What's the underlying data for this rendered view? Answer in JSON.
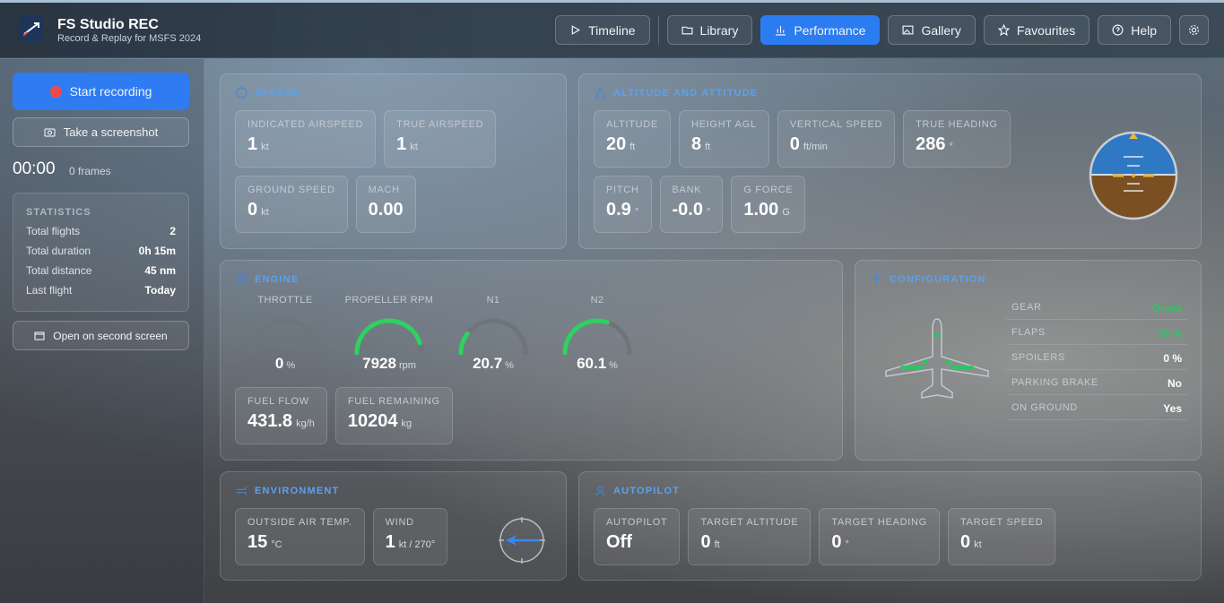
{
  "header": {
    "title": "FS Studio REC",
    "subtitle": "Record & Replay for MSFS 2024",
    "nav": [
      "Timeline",
      "Library",
      "Performance",
      "Gallery",
      "Favourites",
      "Help"
    ]
  },
  "sidebar": {
    "record_button": "Start recording",
    "screenshot_button": "Take a screenshot",
    "timer": "00:00",
    "frames": "0 frames",
    "statistics": {
      "title": "STATISTICS",
      "rows": [
        {
          "label": "Total flights",
          "value": "2"
        },
        {
          "label": "Total duration",
          "value": "0h 15m"
        },
        {
          "label": "Total distance",
          "value": "45 nm"
        },
        {
          "label": "Last flight",
          "value": "Today"
        }
      ]
    },
    "second_screen_button": "Open on second screen"
  },
  "panels": {
    "speeds": {
      "title": "SPEEDS",
      "tiles": [
        {
          "label": "INDICATED AIRSPEED",
          "value": "1",
          "unit": "kt"
        },
        {
          "label": "TRUE AIRSPEED",
          "value": "1",
          "unit": "kt"
        },
        {
          "label": "GROUND SPEED",
          "value": "0",
          "unit": "kt"
        },
        {
          "label": "MACH",
          "value": "0.00"
        }
      ]
    },
    "altitude": {
      "title": "ALTITUDE AND ATTITUDE",
      "tiles": [
        {
          "label": "ALTITUDE",
          "value": "20",
          "unit": "ft"
        },
        {
          "label": "HEIGHT AGL",
          "value": "8",
          "unit": "ft"
        },
        {
          "label": "VERTICAL SPEED",
          "value": "0",
          "unit": "ft/min"
        },
        {
          "label": "TRUE HEADING",
          "value": "286",
          "unit": "°"
        },
        {
          "label": "PITCH",
          "value": "0.9",
          "unit": "°"
        },
        {
          "label": "BANK",
          "value": "-0.0",
          "unit": "°"
        },
        {
          "label": "G FORCE",
          "value": "1.00",
          "unit": "G"
        }
      ]
    },
    "engine": {
      "title": "ENGINE",
      "gauges": [
        {
          "label": "THROTTLE",
          "value": "0",
          "unit": "%"
        },
        {
          "label": "PROPELLER RPM",
          "value": "7928",
          "unit": "rpm"
        },
        {
          "label": "N1",
          "value": "20.7",
          "unit": "%"
        },
        {
          "label": "N2",
          "value": "60.1",
          "unit": "%"
        }
      ],
      "tiles": [
        {
          "label": "FUEL FLOW",
          "value": "431.8",
          "unit": "kg/h"
        },
        {
          "label": "FUEL REMAINING",
          "value": "10204",
          "unit": "kg"
        }
      ]
    },
    "configuration": {
      "title": "CONFIGURATION",
      "rows": [
        {
          "label": "GEAR",
          "value": "Down",
          "color": "#2fc466"
        },
        {
          "label": "FLAPS",
          "value": "38 %",
          "color": "#2fc466"
        },
        {
          "label": "SPOILERS",
          "value": "0 %"
        },
        {
          "label": "PARKING BRAKE",
          "value": "No"
        },
        {
          "label": "ON GROUND",
          "value": "Yes"
        }
      ]
    },
    "environment": {
      "title": "ENVIRONMENT",
      "tiles": [
        {
          "label": "OUTSIDE AIR TEMP.",
          "value": "15",
          "unit": "°C"
        },
        {
          "label": "WIND",
          "value": "1",
          "unit": "kt / 270°"
        }
      ]
    },
    "autopilot": {
      "title": "AUTOPILOT",
      "tiles": [
        {
          "label": "AUTOPILOT",
          "value": "Off"
        },
        {
          "label": "TARGET ALTITUDE",
          "value": "0",
          "unit": "ft"
        },
        {
          "label": "TARGET HEADING",
          "value": "0",
          "unit": "°"
        },
        {
          "label": "TARGET SPEED",
          "value": "0",
          "unit": "kt"
        }
      ]
    }
  }
}
